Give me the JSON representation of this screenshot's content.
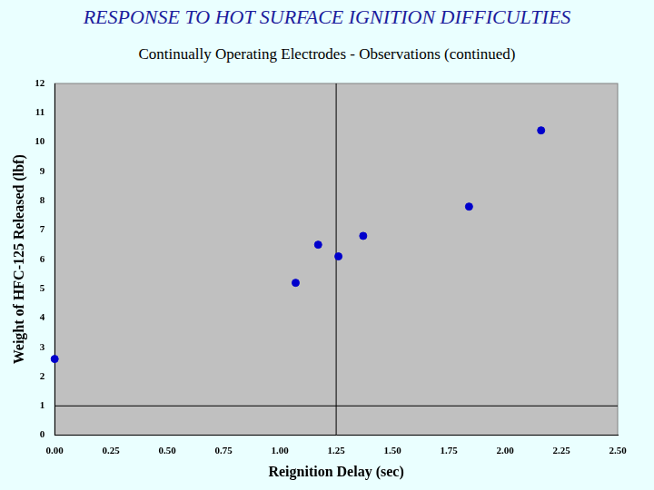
{
  "chart_data": {
    "type": "scatter",
    "title": "RESPONSE TO HOT SURFACE IGNITION DIFFICULTIES",
    "subtitle": "Continually Operating Electrodes - Observations (continued)",
    "x_label": "Reignition Delay (sec)",
    "y_label": "Weight of HFC-125 Released (lbf)",
    "x": [
      0.0,
      1.07,
      1.17,
      1.26,
      1.37,
      1.84,
      2.16
    ],
    "values": [
      2.6,
      5.2,
      6.5,
      6.1,
      6.8,
      7.8,
      10.4
    ],
    "color": "#0000cc",
    "marker": "circle",
    "xlim": [
      0,
      2.5
    ],
    "ylim": [
      0,
      12
    ],
    "xticks": [
      {
        "value": 0,
        "label": "0.00"
      },
      0.25,
      {
        "value": 0.5,
        "label": "0.50"
      },
      0.75,
      {
        "value": 1,
        "label": "1.00"
      },
      1.25,
      {
        "value": 1.5,
        "label": "1.50"
      },
      1.75,
      {
        "value": 2,
        "label": "2.00"
      },
      2.25,
      {
        "value": 2.5,
        "label": "2.50"
      }
    ],
    "yticks": [
      0,
      1,
      2,
      3,
      4,
      5,
      6,
      7,
      8,
      9,
      10,
      11,
      12
    ],
    "grid": false,
    "vlines": [
      1.25
    ],
    "hlines": [
      1
    ]
  }
}
